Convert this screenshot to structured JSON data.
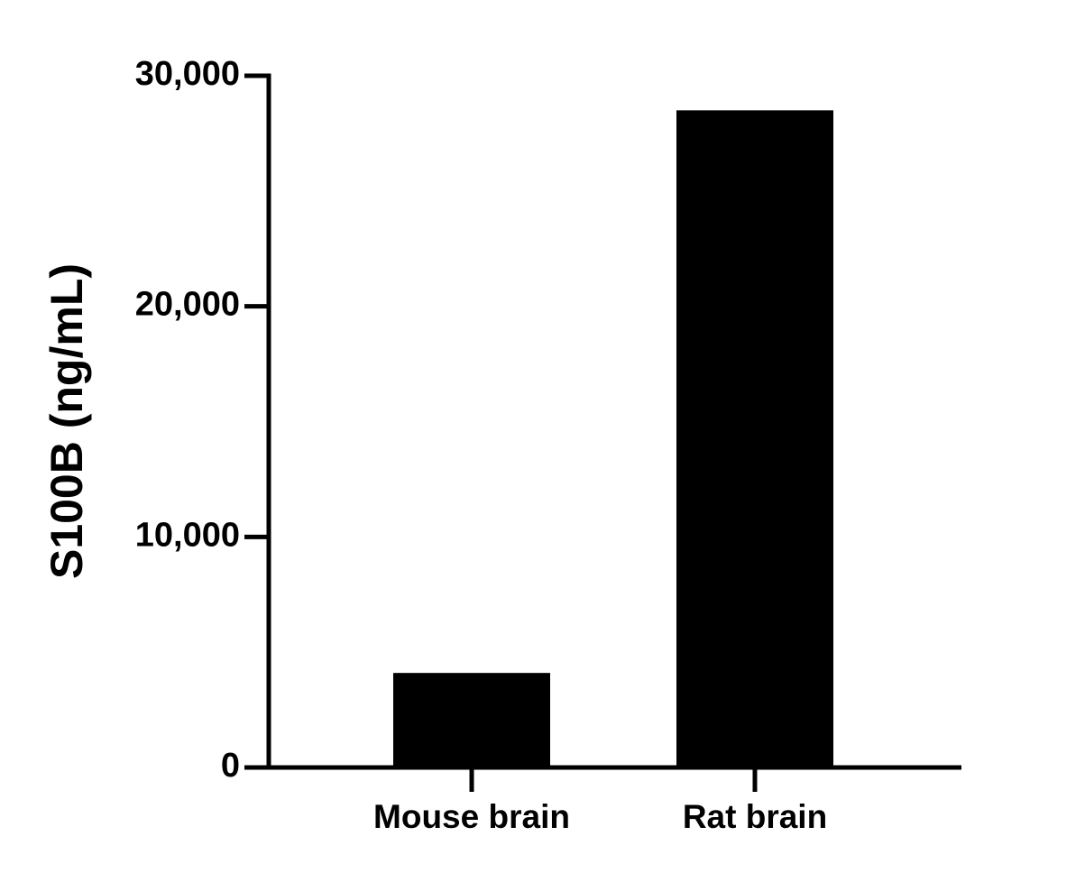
{
  "chart_data": {
    "type": "bar",
    "y_label": "S100B (ng/mL)",
    "categories": [
      "Mouse brain",
      "Rat brain"
    ],
    "values": [
      4100,
      28500
    ],
    "color": "#000000",
    "ylim": [
      0,
      30000
    ],
    "yticks": [
      0,
      {
        "value": 10000,
        "label": "10,000"
      },
      {
        "value": 20000,
        "label": "20,000"
      },
      {
        "value": 30000,
        "label": "30,000"
      }
    ]
  }
}
